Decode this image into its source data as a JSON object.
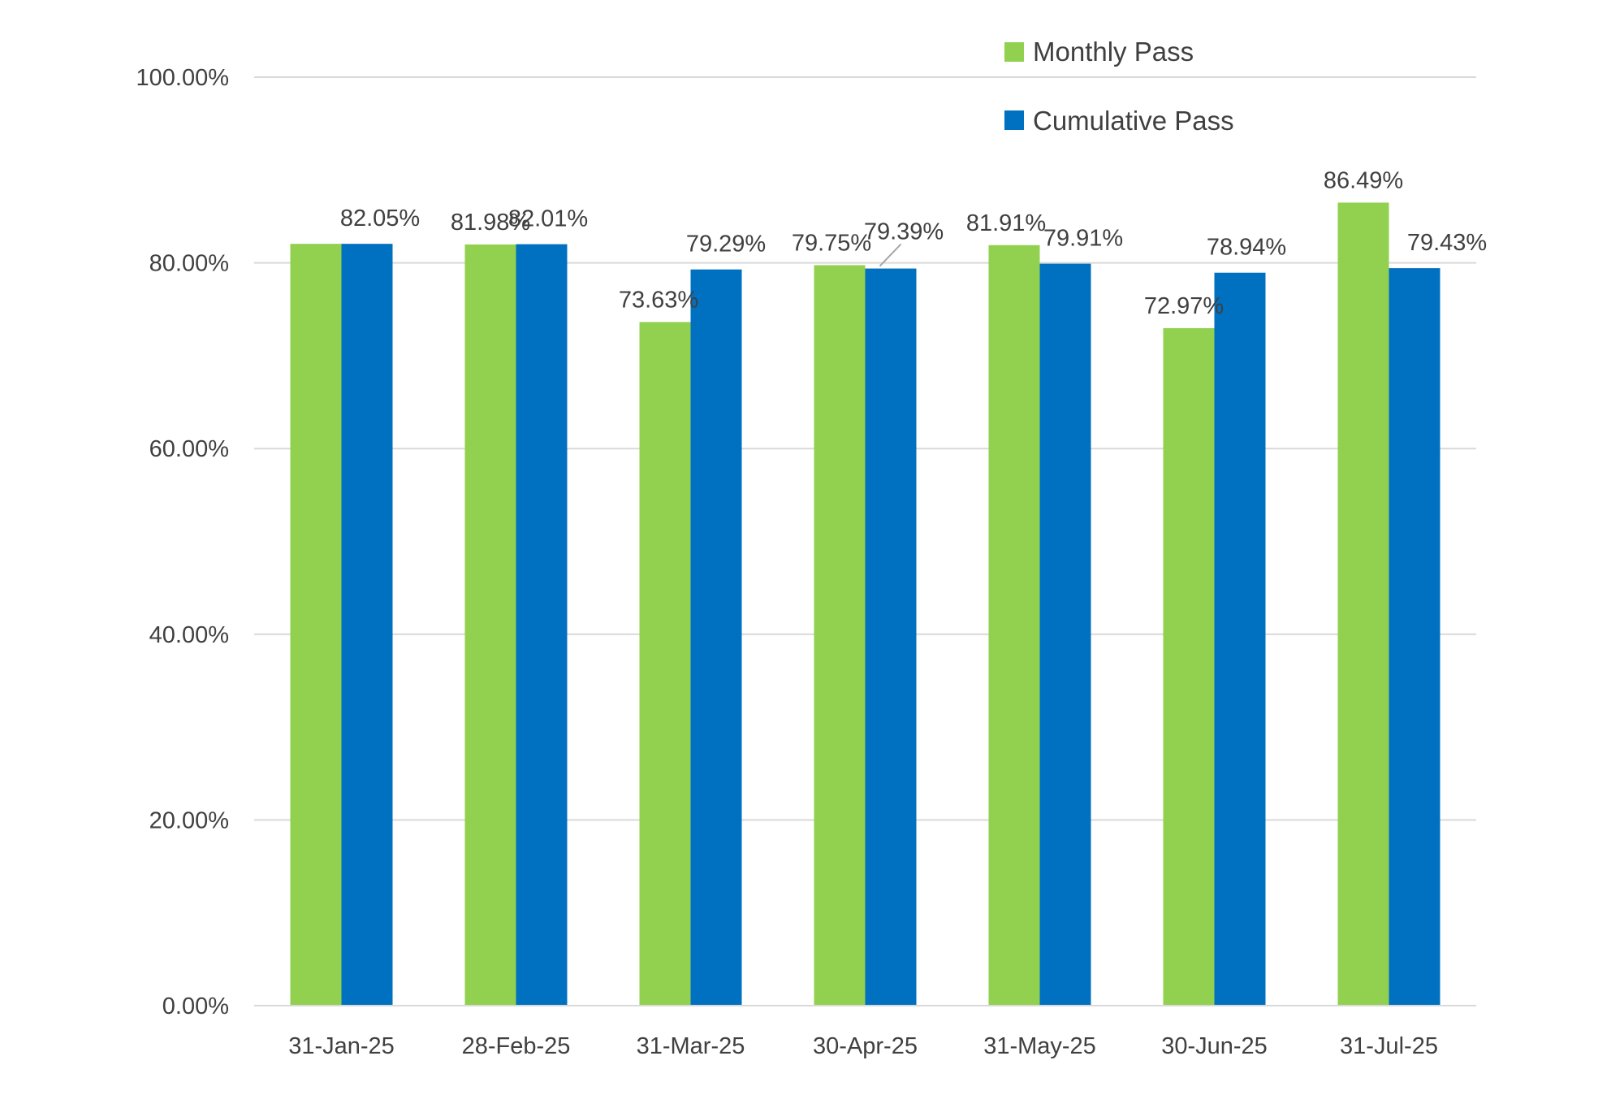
{
  "chart_data": {
    "type": "bar",
    "categories": [
      "31-Jan-25",
      "28-Feb-25",
      "31-Mar-25",
      "30-Apr-25",
      "31-May-25",
      "30-Jun-25",
      "31-Jul-25"
    ],
    "series": [
      {
        "name": "Monthly Pass",
        "color": "#92D050",
        "values": [
          82.05,
          81.98,
          73.63,
          79.75,
          81.91,
          72.97,
          86.49
        ],
        "labels": [
          "",
          "81.98%",
          "73.63%",
          "79.75%",
          "81.91%",
          "72.97%",
          "86.49%"
        ]
      },
      {
        "name": "Cumulative Pass",
        "color": "#0070C0",
        "values": [
          82.05,
          82.01,
          79.29,
          79.39,
          79.91,
          78.94,
          79.43
        ],
        "labels": [
          "82.05%",
          "82.01%",
          "79.29%",
          "79.39%",
          "79.91%",
          "78.94%",
          "79.43%"
        ]
      }
    ],
    "ylim": [
      0,
      100
    ],
    "yticks": [
      "0.00%",
      "20.00%",
      "40.00%",
      "60.00%",
      "80.00%",
      "100.00%"
    ],
    "grid": true,
    "legend_position": "top-right",
    "gridline_color": "#D9D9D9"
  }
}
